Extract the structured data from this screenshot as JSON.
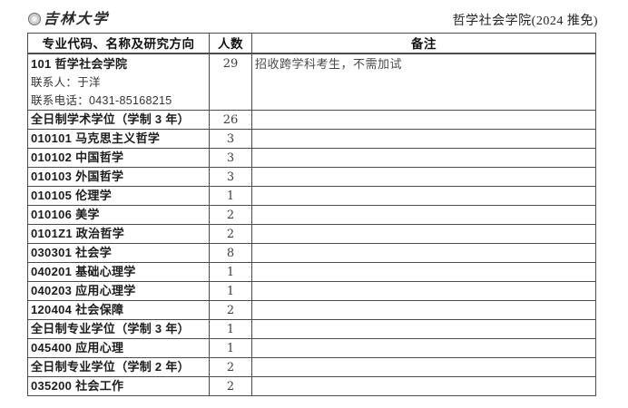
{
  "page": {
    "logo_text": "吉林大学",
    "header_right": "哲学社会学院(2024 推免)"
  },
  "table": {
    "columns": [
      "专业代码、名称及研究方向",
      "人数",
      "备注"
    ],
    "rows": [
      {
        "code_line": "101 哲学社会学院",
        "sub_lines": [
          "联系人：于洋",
          "联系电话：0431-85168215"
        ],
        "count": "29",
        "remark": "招收跨学科考生，不需加试",
        "tall": true
      },
      {
        "code_line": "全日制学术学位（学制 3 年）",
        "count": "26",
        "remark": ""
      },
      {
        "code_line": "010101 马克思主义哲学",
        "count": "3",
        "remark": ""
      },
      {
        "code_line": "010102 中国哲学",
        "count": "3",
        "remark": ""
      },
      {
        "code_line": "010103 外国哲学",
        "count": "3",
        "remark": ""
      },
      {
        "code_line": "010105 伦理学",
        "count": "1",
        "remark": ""
      },
      {
        "code_line": "010106 美学",
        "count": "2",
        "remark": ""
      },
      {
        "code_line": "0101Z1 政治哲学",
        "count": "2",
        "remark": ""
      },
      {
        "code_line": "030301 社会学",
        "count": "8",
        "remark": ""
      },
      {
        "code_line": "040201 基础心理学",
        "count": "1",
        "remark": ""
      },
      {
        "code_line": "040203 应用心理学",
        "count": "1",
        "remark": ""
      },
      {
        "code_line": "120404 社会保障",
        "count": "2",
        "remark": ""
      },
      {
        "code_line": "全日制专业学位（学制 3 年）",
        "count": "1",
        "remark": ""
      },
      {
        "code_line": "045400 应用心理",
        "count": "1",
        "remark": ""
      },
      {
        "code_line": "全日制专业学位（学制 2 年）",
        "count": "2",
        "remark": ""
      },
      {
        "code_line": "035200 社会工作",
        "count": "2",
        "remark": ""
      }
    ]
  }
}
